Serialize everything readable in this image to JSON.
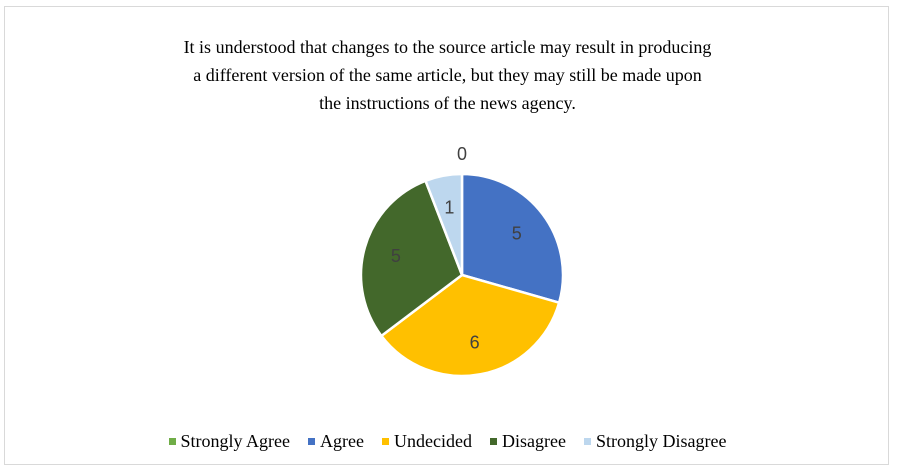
{
  "chart_data": {
    "type": "pie",
    "title": "It is understood that changes to the source article may result in producing\na different version of the same article, but they may still be made upon\nthe instructions of the news agency.",
    "categories": [
      "Strongly Agree",
      "Agree",
      "Undecided",
      "Disagree",
      "Strongly Disagree"
    ],
    "values": [
      0,
      5,
      6,
      5,
      1
    ],
    "colors": [
      "#70ad47",
      "#4472c4",
      "#ffc000",
      "#43682b",
      "#bdd7ee"
    ],
    "data_labels": [
      "0",
      "5",
      "6",
      "5",
      "1"
    ],
    "legend_position": "bottom",
    "start_angle_deg": 0,
    "direction": "clockwise"
  }
}
